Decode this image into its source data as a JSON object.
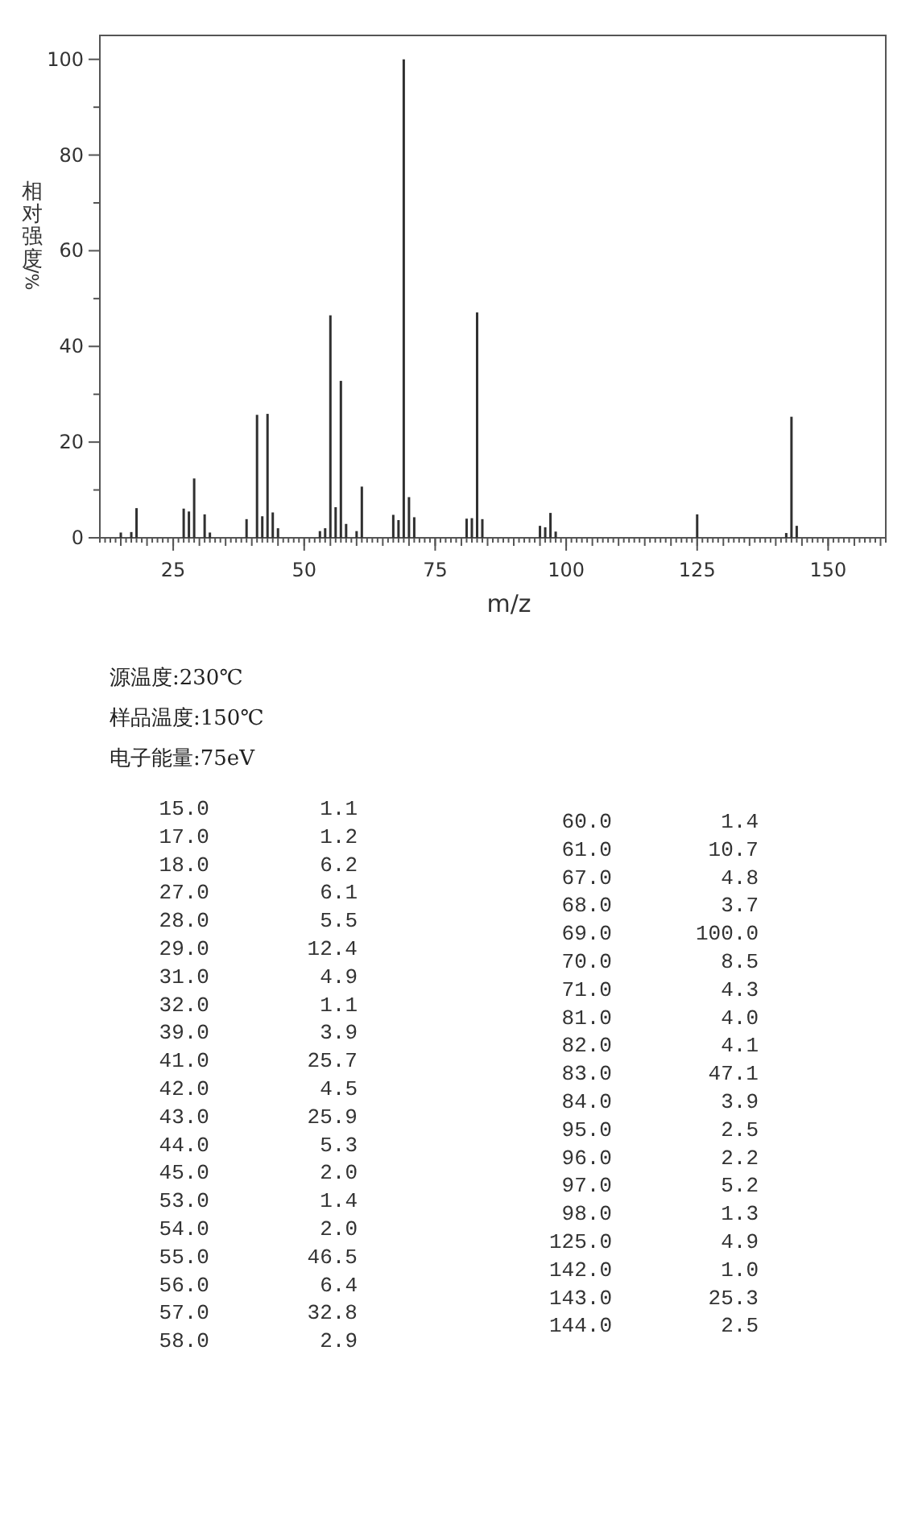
{
  "chart_data": [
    {
      "type": "bar",
      "xlabel": "m/z",
      "ylabel": "相对强度/%",
      "color": "#303030",
      "x": [
        15,
        17,
        18,
        27,
        28,
        29,
        31,
        32,
        39,
        41,
        42,
        43,
        44,
        45,
        53,
        54,
        55,
        56,
        57,
        58,
        60,
        61,
        67,
        68,
        69,
        70,
        71,
        81,
        82,
        83,
        84,
        95,
        96,
        97,
        98,
        125,
        142,
        143,
        144
      ],
      "values": [
        1.1,
        1.2,
        6.2,
        6.1,
        5.5,
        12.4,
        4.9,
        1.1,
        3.9,
        25.7,
        4.5,
        25.9,
        5.3,
        2.0,
        1.4,
        2.0,
        46.5,
        6.4,
        32.8,
        2.9,
        1.4,
        10.7,
        4.8,
        3.7,
        100.0,
        8.5,
        4.3,
        4.0,
        4.1,
        47.1,
        3.9,
        2.5,
        2.2,
        5.2,
        1.3,
        4.9,
        1.0,
        25.3,
        2.5
      ],
      "xlim": [
        11,
        161
      ],
      "xticks": [
        25,
        50,
        75,
        100,
        125,
        150
      ],
      "ylim": [
        0,
        105
      ],
      "yticks": [
        0,
        20,
        40,
        60,
        80,
        100
      ],
      "annotations": [
        "源温度:230℃",
        "样品温度:150℃",
        "电子能量:75eV"
      ]
    },
    {
      "type": "other",
      "annotations": [
        "15.0",
        "1.1",
        "17.0",
        "1.2",
        "18.0",
        "6.2",
        "27.0",
        "6.1",
        "28.0",
        "5.5",
        "29.0",
        "12.4",
        "31.0",
        "4.9",
        "32.0",
        "1.1",
        "39.0",
        "3.9",
        "41.0",
        "25.7",
        "42.0",
        "4.5",
        "43.0",
        "25.9",
        "44.0",
        "5.3",
        "45.0",
        "2.0",
        "53.0",
        "1.4",
        "54.0",
        "2.0",
        "55.0",
        "46.5",
        "56.0",
        "6.4",
        "57.0",
        "32.8",
        "58.0",
        "2.9",
        "60.0",
        "1.4",
        "61.0",
        "10.7",
        "67.0",
        "4.8",
        "68.0",
        "3.7",
        "69.0",
        "100.0",
        "70.0",
        "8.5",
        "71.0",
        "4.3",
        "81.0",
        "4.0",
        "82.0",
        "4.1",
        "83.0",
        "47.1",
        "84.0",
        "3.9",
        "95.0",
        "2.5",
        "96.0",
        "2.2",
        "97.0",
        "5.2",
        "98.0",
        "1.3",
        "125.0",
        "4.9",
        "142.0",
        "1.0",
        "143.0",
        "25.3",
        "144.0",
        "2.5"
      ]
    }
  ]
}
